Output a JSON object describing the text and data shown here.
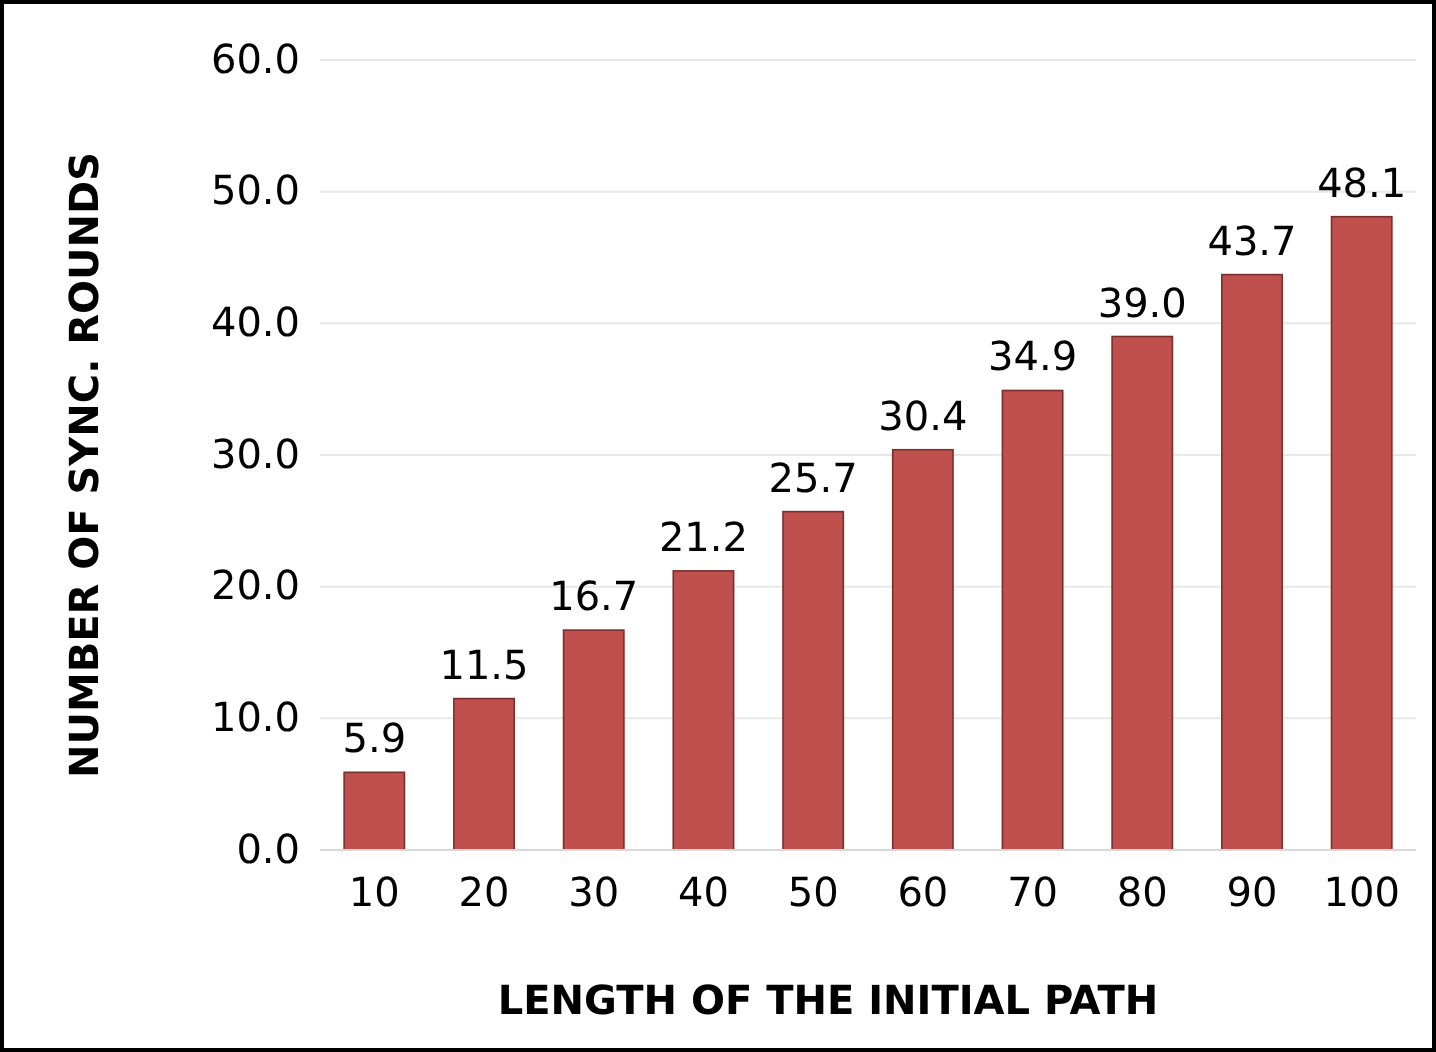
{
  "chart_data": {
    "type": "bar",
    "xlabel": "LENGTH OF THE INITIAL PATH",
    "ylabel": "NUMBER OF SYNC. ROUNDS",
    "categories": [
      "10",
      "20",
      "30",
      "40",
      "50",
      "60",
      "70",
      "80",
      "90",
      "100"
    ],
    "values": [
      5.9,
      11.5,
      16.7,
      21.2,
      25.7,
      30.4,
      34.9,
      39.0,
      43.7,
      48.1
    ],
    "value_labels": [
      "5.9",
      "11.5",
      "16.7",
      "21.2",
      "25.7",
      "30.4",
      "34.9",
      "39.0",
      "43.7",
      "48.1"
    ],
    "color": "#c0504d",
    "ylim": [
      0,
      60
    ],
    "yticks": [
      {
        "value": 0,
        "label": "0.0"
      },
      {
        "value": 10,
        "label": "10.0"
      },
      {
        "value": 20,
        "label": "20.0"
      },
      {
        "value": 30,
        "label": "30.0"
      },
      {
        "value": 40,
        "label": "40.0"
      },
      {
        "value": 50,
        "label": "50.0"
      },
      {
        "value": 60,
        "label": "60.0"
      }
    ],
    "grid": "y"
  }
}
